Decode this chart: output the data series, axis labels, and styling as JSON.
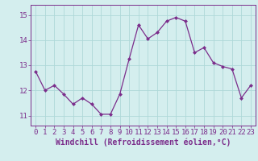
{
  "x": [
    0,
    1,
    2,
    3,
    4,
    5,
    6,
    7,
    8,
    9,
    10,
    11,
    12,
    13,
    14,
    15,
    16,
    17,
    18,
    19,
    20,
    21,
    22,
    23
  ],
  "y": [
    12.75,
    12.0,
    12.2,
    11.85,
    11.45,
    11.7,
    11.45,
    11.05,
    11.05,
    11.85,
    13.25,
    14.6,
    14.05,
    14.3,
    14.75,
    14.9,
    14.75,
    13.5,
    13.7,
    13.1,
    12.95,
    12.85,
    11.7,
    12.2
  ],
  "line_color": "#7B2D8B",
  "marker": "D",
  "marker_size": 2,
  "bg_color": "#d4eeee",
  "grid_color": "#aed8d8",
  "xlabel": "Windchill (Refroidissement éolien,°C)",
  "xlim_min": -0.5,
  "xlim_max": 23.5,
  "ylim_min": 10.6,
  "ylim_max": 15.4,
  "yticks": [
    11,
    12,
    13,
    14,
    15
  ],
  "xticks": [
    0,
    1,
    2,
    3,
    4,
    5,
    6,
    7,
    8,
    9,
    10,
    11,
    12,
    13,
    14,
    15,
    16,
    17,
    18,
    19,
    20,
    21,
    22,
    23
  ],
  "label_color": "#7B2D8B",
  "label_fontsize": 6.5,
  "xlabel_fontsize": 7
}
